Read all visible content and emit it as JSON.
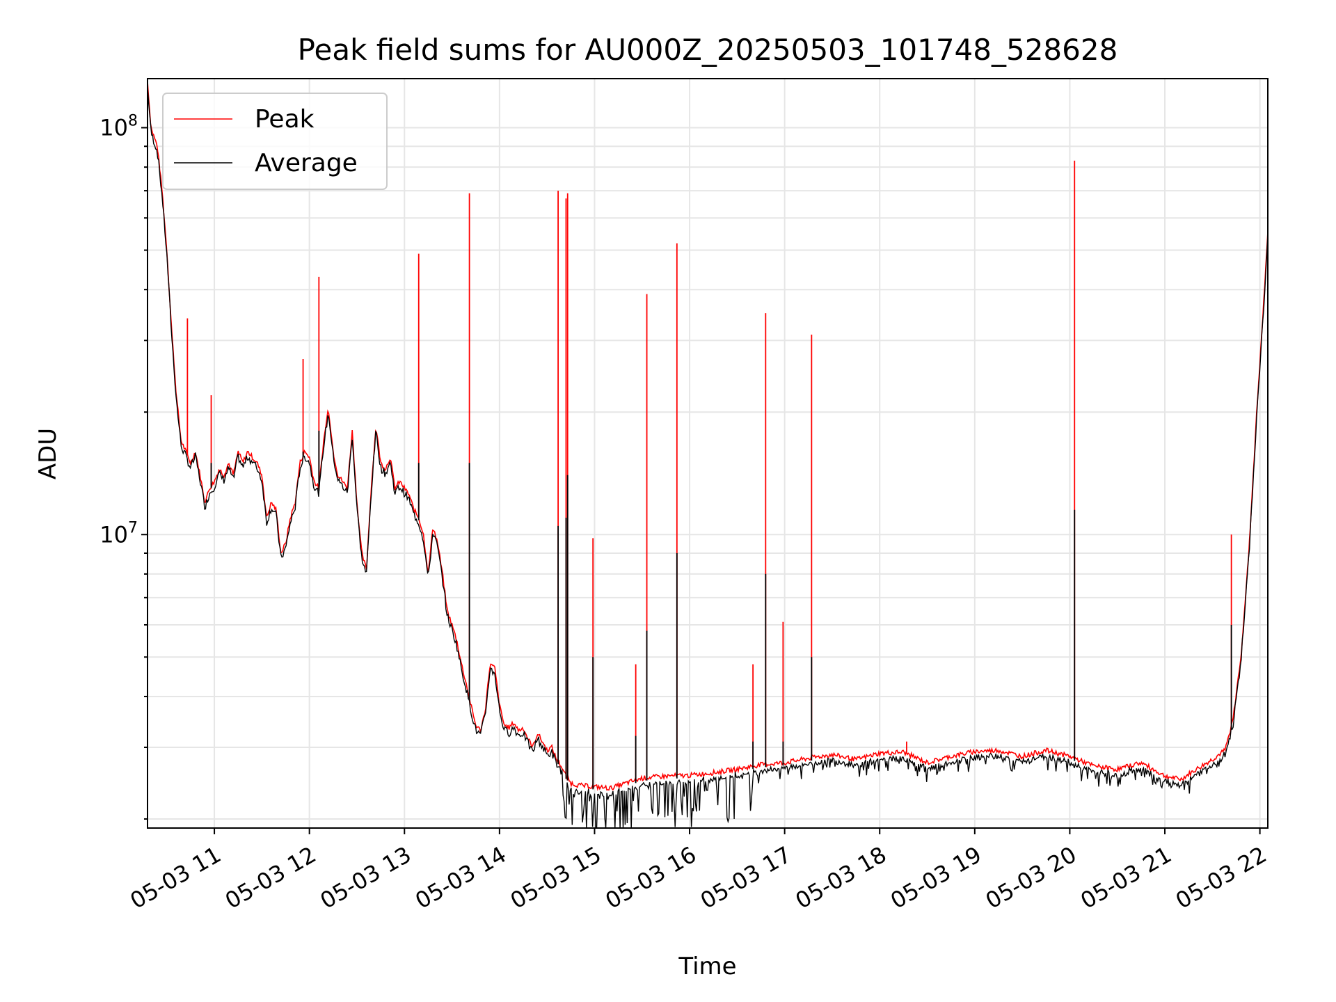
{
  "chart_data": {
    "type": "line",
    "title": "Peak field sums for AU000Z_20250503_101748_528628",
    "xlabel": "Time",
    "ylabel": "ADU",
    "yscale": "log",
    "grid": true,
    "legend_position": "top-left",
    "xlim": [
      "2025-05-03T10:17:48",
      "2025-05-03T22:05:00"
    ],
    "ylim": [
      1900000,
      132000000
    ],
    "x_ticks": [
      "05-03 11",
      "05-03 12",
      "05-03 13",
      "05-03 14",
      "05-03 15",
      "05-03 16",
      "05-03 17",
      "05-03 18",
      "05-03 19",
      "05-03 20",
      "05-03 21",
      "05-03 22"
    ],
    "y_ticks": [
      {
        "value": 10000000,
        "label_base": "10",
        "label_exp": "7"
      },
      {
        "value": 100000000,
        "label_base": "10",
        "label_exp": "8"
      }
    ],
    "series": [
      {
        "name": "Peak",
        "color": "#ff0000",
        "baseline": [
          [
            "2025-05-03T10:17:48",
            130000000
          ],
          [
            "2025-05-03T10:20",
            100000000
          ],
          [
            "2025-05-03T10:24",
            90000000
          ],
          [
            "2025-05-03T10:27",
            70000000
          ],
          [
            "2025-05-03T10:30",
            50000000
          ],
          [
            "2025-05-03T10:33",
            32000000
          ],
          [
            "2025-05-03T10:36",
            22000000
          ],
          [
            "2025-05-03T10:39",
            17000000
          ],
          [
            "2025-05-03T10:42",
            16000000
          ],
          [
            "2025-05-03T10:45",
            15000000
          ],
          [
            "2025-05-03T10:48",
            16000000
          ],
          [
            "2025-05-03T10:51",
            14000000
          ],
          [
            "2025-05-03T10:54",
            12000000
          ],
          [
            "2025-05-03T10:57",
            13000000
          ],
          [
            "2025-05-03T11:00",
            13500000
          ],
          [
            "2025-05-03T11:03",
            14500000
          ],
          [
            "2025-05-03T11:06",
            14000000
          ],
          [
            "2025-05-03T11:09",
            15000000
          ],
          [
            "2025-05-03T11:12",
            14000000
          ],
          [
            "2025-05-03T11:15",
            16000000
          ],
          [
            "2025-05-03T11:18",
            15000000
          ],
          [
            "2025-05-03T11:21",
            16000000
          ],
          [
            "2025-05-03T11:24",
            15500000
          ],
          [
            "2025-05-03T11:27",
            15000000
          ],
          [
            "2025-05-03T11:30",
            14000000
          ],
          [
            "2025-05-03T11:33",
            11000000
          ],
          [
            "2025-05-03T11:36",
            12000000
          ],
          [
            "2025-05-03T11:39",
            11500000
          ],
          [
            "2025-05-03T11:42",
            9000000
          ],
          [
            "2025-05-03T11:45",
            9500000
          ],
          [
            "2025-05-03T11:48",
            11000000
          ],
          [
            "2025-05-03T11:51",
            12000000
          ],
          [
            "2025-05-03T11:54",
            15000000
          ],
          [
            "2025-05-03T11:57",
            16000000
          ],
          [
            "2025-05-03T12:00",
            15500000
          ],
          [
            "2025-05-03T12:03",
            13500000
          ],
          [
            "2025-05-03T12:06",
            13000000
          ],
          [
            "2025-05-03T12:09",
            17000000
          ],
          [
            "2025-05-03T12:12",
            20500000
          ],
          [
            "2025-05-03T12:15",
            16000000
          ],
          [
            "2025-05-03T12:18",
            14000000
          ],
          [
            "2025-05-03T12:21",
            13500000
          ],
          [
            "2025-05-03T12:24",
            13000000
          ],
          [
            "2025-05-03T12:27",
            18000000
          ],
          [
            "2025-05-03T12:30",
            12000000
          ],
          [
            "2025-05-03T12:33",
            9000000
          ],
          [
            "2025-05-03T12:36",
            8200000
          ],
          [
            "2025-05-03T12:39",
            13000000
          ],
          [
            "2025-05-03T12:42",
            18500000
          ],
          [
            "2025-05-03T12:45",
            15000000
          ],
          [
            "2025-05-03T12:48",
            14500000
          ],
          [
            "2025-05-03T12:51",
            15500000
          ],
          [
            "2025-05-03T12:54",
            13000000
          ],
          [
            "2025-05-03T12:57",
            13500000
          ],
          [
            "2025-05-03T13:00",
            13000000
          ],
          [
            "2025-05-03T13:03",
            12500000
          ],
          [
            "2025-05-03T13:06",
            11500000
          ],
          [
            "2025-05-03T13:09",
            11000000
          ],
          [
            "2025-05-03T13:12",
            10000000
          ],
          [
            "2025-05-03T13:15",
            8000000
          ],
          [
            "2025-05-03T13:18",
            10500000
          ],
          [
            "2025-05-03T13:21",
            9500000
          ],
          [
            "2025-05-03T13:24",
            8000000
          ],
          [
            "2025-05-03T13:27",
            6500000
          ],
          [
            "2025-05-03T13:30",
            6000000
          ],
          [
            "2025-05-03T13:33",
            5500000
          ],
          [
            "2025-05-03T13:36",
            4800000
          ],
          [
            "2025-05-03T13:39",
            4300000
          ],
          [
            "2025-05-03T13:42",
            3800000
          ],
          [
            "2025-05-03T13:45",
            3400000
          ],
          [
            "2025-05-03T13:48",
            3300000
          ],
          [
            "2025-05-03T13:51",
            3700000
          ],
          [
            "2025-05-03T13:54",
            4800000
          ],
          [
            "2025-05-03T13:57",
            4700000
          ],
          [
            "2025-05-03T14:00",
            3800000
          ],
          [
            "2025-05-03T14:03",
            3400000
          ],
          [
            "2025-05-03T14:06",
            3350000
          ],
          [
            "2025-05-03T14:09",
            3450000
          ],
          [
            "2025-05-03T14:12",
            3300000
          ],
          [
            "2025-05-03T14:15",
            3350000
          ],
          [
            "2025-05-03T14:18",
            3150000
          ],
          [
            "2025-05-03T14:21",
            3000000
          ],
          [
            "2025-05-03T14:24",
            3250000
          ],
          [
            "2025-05-03T14:27",
            3100000
          ],
          [
            "2025-05-03T14:30",
            2950000
          ],
          [
            "2025-05-03T14:33",
            3000000
          ],
          [
            "2025-05-03T14:36",
            2800000
          ],
          [
            "2025-05-03T14:39",
            2700000
          ],
          [
            "2025-05-03T14:42",
            2550000
          ],
          [
            "2025-05-03T14:45",
            2450000
          ],
          [
            "2025-05-03T14:50",
            2420000
          ],
          [
            "2025-05-03T15:00",
            2400000
          ],
          [
            "2025-05-03T15:10",
            2380000
          ],
          [
            "2025-05-03T15:20",
            2450000
          ],
          [
            "2025-05-03T15:30",
            2520000
          ],
          [
            "2025-05-03T15:45",
            2550000
          ],
          [
            "2025-05-03T16:00",
            2560000
          ],
          [
            "2025-05-03T16:15",
            2600000
          ],
          [
            "2025-05-03T16:30",
            2650000
          ],
          [
            "2025-05-03T16:45",
            2720000
          ],
          [
            "2025-05-03T17:00",
            2750000
          ],
          [
            "2025-05-03T17:15",
            2820000
          ],
          [
            "2025-05-03T17:30",
            2880000
          ],
          [
            "2025-05-03T17:45",
            2800000
          ],
          [
            "2025-05-03T18:00",
            2900000
          ],
          [
            "2025-05-03T18:15",
            2920000
          ],
          [
            "2025-05-03T18:30",
            2750000
          ],
          [
            "2025-05-03T18:45",
            2850000
          ],
          [
            "2025-05-03T19:00",
            2930000
          ],
          [
            "2025-05-03T19:15",
            2950000
          ],
          [
            "2025-05-03T19:30",
            2850000
          ],
          [
            "2025-05-03T19:45",
            2950000
          ],
          [
            "2025-05-03T20:00",
            2850000
          ],
          [
            "2025-05-03T20:15",
            2700000
          ],
          [
            "2025-05-03T20:30",
            2650000
          ],
          [
            "2025-05-03T20:45",
            2750000
          ],
          [
            "2025-05-03T21:00",
            2550000
          ],
          [
            "2025-05-03T21:10",
            2500000
          ],
          [
            "2025-05-03T21:20",
            2650000
          ],
          [
            "2025-05-03T21:30",
            2800000
          ],
          [
            "2025-05-03T21:38",
            2950000
          ],
          [
            "2025-05-03T21:43",
            3500000
          ],
          [
            "2025-05-03T21:48",
            5000000
          ],
          [
            "2025-05-03T21:53",
            9000000
          ],
          [
            "2025-05-03T21:58",
            20000000
          ],
          [
            "2025-05-03T22:02",
            35000000
          ],
          [
            "2025-05-03T22:05",
            55000000
          ]
        ],
        "spikes": [
          [
            "2025-05-03T10:43",
            34000000
          ],
          [
            "2025-05-03T10:58",
            22000000
          ],
          [
            "2025-05-03T11:56",
            27000000
          ],
          [
            "2025-05-03T12:06",
            43000000
          ],
          [
            "2025-05-03T13:09",
            49000000
          ],
          [
            "2025-05-03T13:41",
            69000000
          ],
          [
            "2025-05-03T14:37",
            70000000
          ],
          [
            "2025-05-03T14:42",
            67000000
          ],
          [
            "2025-05-03T14:43",
            69000000
          ],
          [
            "2025-05-03T14:59",
            9800000
          ],
          [
            "2025-05-03T15:26",
            4800000
          ],
          [
            "2025-05-03T15:33",
            39000000
          ],
          [
            "2025-05-03T15:52",
            52000000
          ],
          [
            "2025-05-03T16:40",
            4800000
          ],
          [
            "2025-05-03T16:48",
            35000000
          ],
          [
            "2025-05-03T16:59",
            6100000
          ],
          [
            "2025-05-03T17:17",
            31000000
          ],
          [
            "2025-05-03T18:17",
            3100000
          ],
          [
            "2025-05-03T20:03",
            83000000
          ],
          [
            "2025-05-03T21:42",
            10000000
          ]
        ]
      },
      {
        "name": "Average",
        "color": "#000000",
        "spikes": [
          [
            "2025-05-03T10:58",
            15000000
          ],
          [
            "2025-05-03T11:56",
            16000000
          ],
          [
            "2025-05-03T12:06",
            18000000
          ],
          [
            "2025-05-03T13:09",
            15000000
          ],
          [
            "2025-05-03T13:41",
            15000000
          ],
          [
            "2025-05-03T14:37",
            10500000
          ],
          [
            "2025-05-03T14:42",
            11000000
          ],
          [
            "2025-05-03T14:43",
            14000000
          ],
          [
            "2025-05-03T14:59",
            5000000
          ],
          [
            "2025-05-03T15:26",
            3200000
          ],
          [
            "2025-05-03T15:33",
            5800000
          ],
          [
            "2025-05-03T15:52",
            9000000
          ],
          [
            "2025-05-03T16:40",
            3100000
          ],
          [
            "2025-05-03T16:48",
            8000000
          ],
          [
            "2025-05-03T16:59",
            3100000
          ],
          [
            "2025-05-03T17:17",
            5000000
          ],
          [
            "2025-05-03T20:03",
            11500000
          ],
          [
            "2025-05-03T21:42",
            6000000
          ]
        ]
      }
    ]
  }
}
